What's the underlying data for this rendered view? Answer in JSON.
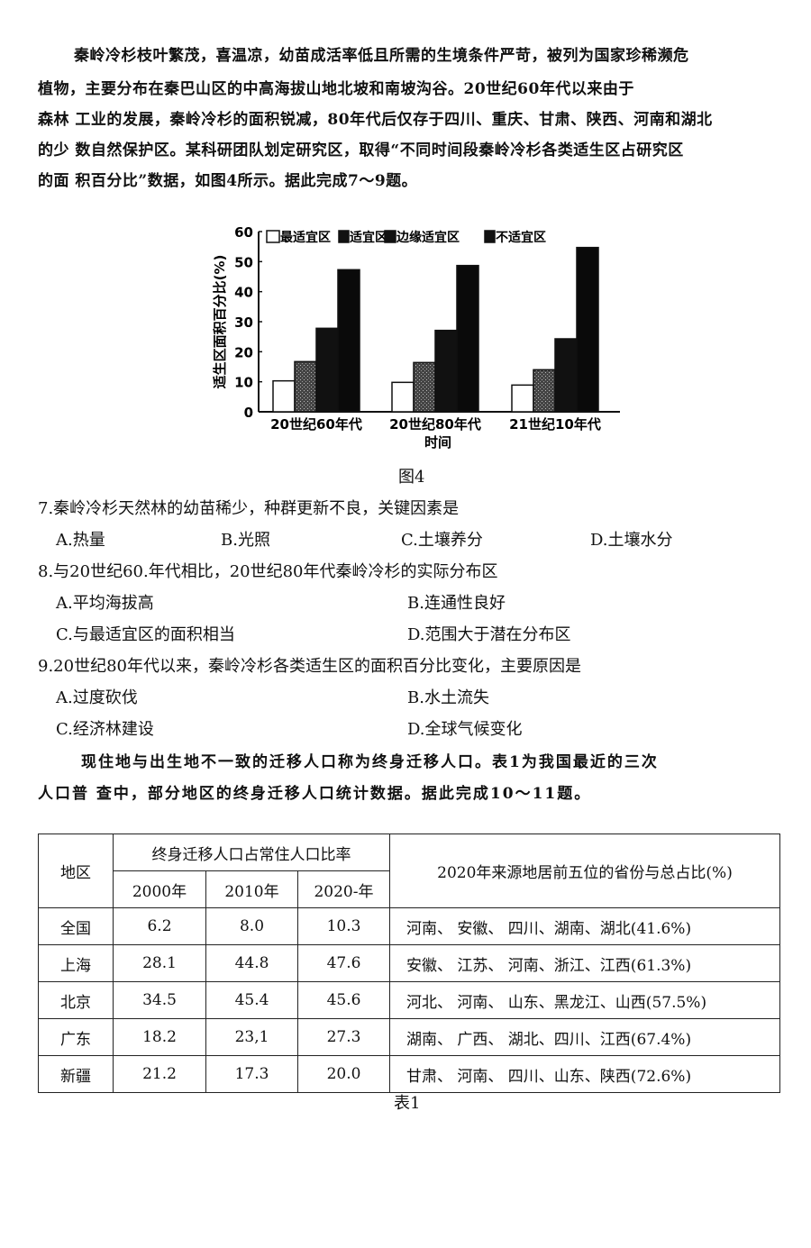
{
  "intro": {
    "lines": [
      "秦岭冷杉枝叶繁茂，喜温凉，幼苗成活率低且所需的生境条件严苛，被列为国家珍稀濒危",
      "植物，主要分布在秦巴山区的中高海拔山地北坡和南坡沟谷。20世纪60年代以来由于",
      "森林 工业的发展，秦岭冷杉的面积锐减，80年代后仅存于四川、重庆、甘肃、陕西、河南和湖北",
      "的少 数自然保护区。某科研团队划定研究区，取得“不同时间段秦岭冷杉各类适生区占研究区",
      "的面 积百分比”数据，如图4所示。据此完成7～9题。"
    ]
  },
  "figure_caption": "图4",
  "chart_data": {
    "type": "bar",
    "title": "",
    "xlabel": "时间",
    "ylabel": "适生区面积百分比(%)",
    "ylim": [
      0,
      60
    ],
    "yticks": [
      "0",
      "10",
      "20",
      "30",
      "40",
      "50",
      "60"
    ],
    "categories": [
      "20世纪60年代",
      "20世纪80年代",
      "21世纪10年代"
    ],
    "legend_position": "top",
    "series": [
      {
        "name": "最适宜区",
        "values": [
          10.3,
          9.8,
          8.9
        ],
        "fill": "#ffffff"
      },
      {
        "name": "适宜区",
        "values": [
          16.7,
          16.4,
          14.0
        ],
        "fill": "#555555"
      },
      {
        "name": "边缘适宜区",
        "values": [
          27.8,
          27.1,
          24.3
        ],
        "fill": "#111111"
      },
      {
        "name": "不适宜区",
        "values": [
          47.3,
          48.7,
          54.7
        ],
        "fill": "#0a0a0a"
      }
    ]
  },
  "questions": [
    {
      "stem": "7.秦岭冷杉天然林的幼苗稀少，种群更新不良，关键因素是",
      "options": [
        "A.热量",
        "B.光照",
        "C.土壤养分",
        "D.土壤水分"
      ]
    },
    {
      "stem": "8.与20世纪60.年代相比，20世纪80年代秦岭冷杉的实际分布区",
      "options": [
        "A.平均海拔高",
        "B.连通性良好",
        "C.与最适宜区的面积相当",
        "D.范围大于潜在分布区"
      ]
    },
    {
      "stem": "9.20世纪80年代以来，秦岭冷杉各类适生区的面积百分比变化，主要原因是",
      "options": [
        "A.过度砍伐",
        "B.水土流失",
        "C.经济林建设",
        "D.全球气候变化"
      ]
    }
  ],
  "passage2": {
    "lines": [
      "现住地与出生地不一致的迁移人口称为终身迁移人口。表1为我国最近的三次",
      "人口普 查中，部分地区的终身迁移人口统计数据。据此完成10～11题。"
    ]
  },
  "table": {
    "header_region": "地区",
    "header_rate": "终身迁移人口占常住人口比率",
    "years": [
      "2000年",
      "2010年",
      "2020-年"
    ],
    "header_source": "2020年来源地居前五位的省份与总占比(%)",
    "rows": [
      {
        "region": "全国",
        "v2000": "6.2",
        "v2010": "8.0",
        "v2020": "10.3",
        "source": "河南、 安徽、 四川、湖南、湖北(41.6%)"
      },
      {
        "region": "上海",
        "v2000": "28.1",
        "v2010": "44.8",
        "v2020": "47.6",
        "source": "安徽、 江苏、 河南、浙江、江西(61.3%)"
      },
      {
        "region": "北京",
        "v2000": "34.5",
        "v2010": "45.4",
        "v2020": "45.6",
        "source": "河北、 河南、 山东、黑龙江、山西(57.5%)"
      },
      {
        "region": "广东",
        "v2000": "18.2",
        "v2010": "23,1",
        "v2020": "27.3",
        "source": "湖南、 广西、 湖北、四川、江西(67.4%)"
      },
      {
        "region": "新疆",
        "v2000": "21.2",
        "v2010": "17.3",
        "v2020": "20.0",
        "source": "甘肃、 河南、 四川、山东、陕西(72.6%)"
      }
    ],
    "caption": "表1"
  }
}
